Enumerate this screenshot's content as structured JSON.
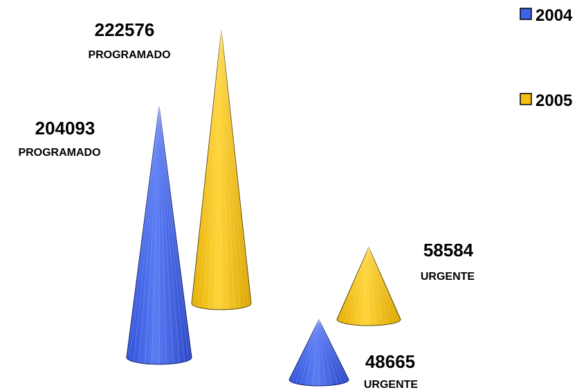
{
  "chart_data": {
    "type": "bar",
    "style": "3d-cone",
    "categories": [
      "PROGRAMADO",
      "URGENTE"
    ],
    "series": [
      {
        "name": "2004",
        "color": "#3f63e6",
        "values": [
          204093,
          48665
        ]
      },
      {
        "name": "2005",
        "color": "#f2c010",
        "values": [
          222576,
          58584
        ]
      }
    ],
    "legend_placement": "top-right",
    "grid": false,
    "axes_visible": false
  }
}
